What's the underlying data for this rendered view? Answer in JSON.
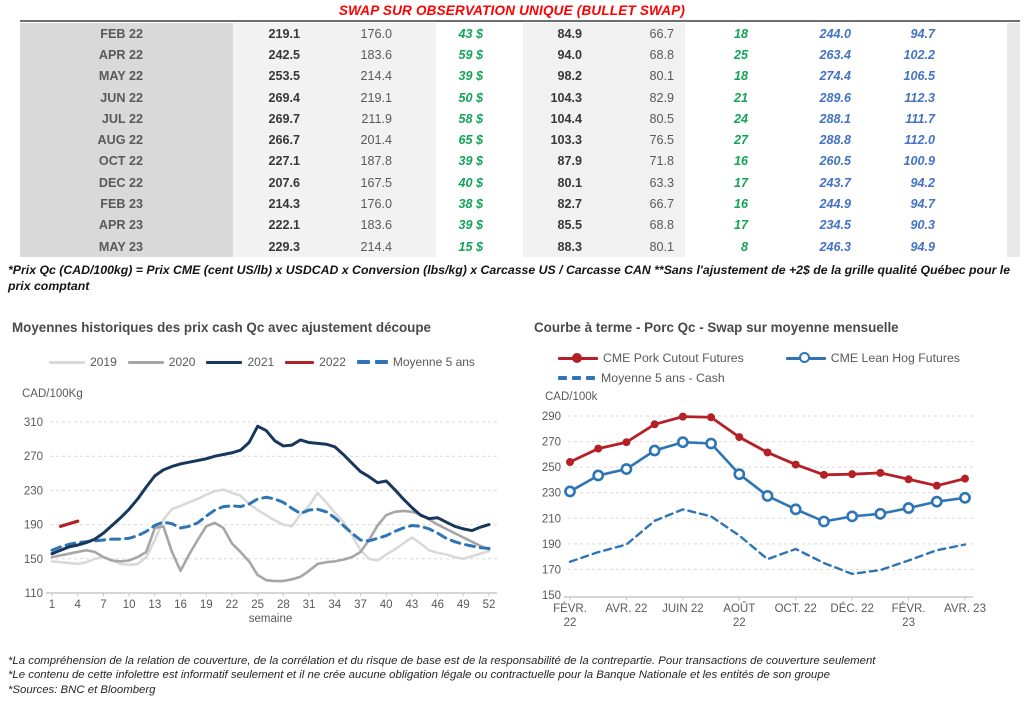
{
  "title": "SWAP SUR OBSERVATION UNIQUE (BULLET SWAP)",
  "table": {
    "rows": [
      {
        "month": "FEB 22",
        "values": [
          "219.1",
          "176.0",
          "43 $",
          "84.9",
          "66.7",
          "18",
          "244.0",
          "94.7"
        ]
      },
      {
        "month": "APR 22",
        "values": [
          "242.5",
          "183.6",
          "59 $",
          "94.0",
          "68.8",
          "25",
          "263.4",
          "102.2"
        ]
      },
      {
        "month": "MAY 22",
        "values": [
          "253.5",
          "214.4",
          "39 $",
          "98.2",
          "80.1",
          "18",
          "274.4",
          "106.5"
        ]
      },
      {
        "month": "JUN 22",
        "values": [
          "269.4",
          "219.1",
          "50 $",
          "104.3",
          "82.9",
          "21",
          "289.6",
          "112.3"
        ]
      },
      {
        "month": "JUL 22",
        "values": [
          "269.7",
          "211.9",
          "58 $",
          "104.4",
          "80.5",
          "24",
          "288.1",
          "111.7"
        ]
      },
      {
        "month": "AUG 22",
        "values": [
          "266.7",
          "201.4",
          "65 $",
          "103.3",
          "76.5",
          "27",
          "288.8",
          "112.0"
        ]
      },
      {
        "month": "OCT 22",
        "values": [
          "227.1",
          "187.8",
          "39 $",
          "87.9",
          "71.8",
          "16",
          "260.5",
          "100.9"
        ]
      },
      {
        "month": "DEC 22",
        "values": [
          "207.6",
          "167.5",
          "40 $",
          "80.1",
          "63.3",
          "17",
          "243.7",
          "94.2"
        ]
      },
      {
        "month": "FEB 23",
        "values": [
          "214.3",
          "176.0",
          "38 $",
          "82.7",
          "66.7",
          "16",
          "244.9",
          "94.7"
        ]
      },
      {
        "month": "APR 23",
        "values": [
          "222.1",
          "183.6",
          "39 $",
          "85.5",
          "68.8",
          "17",
          "234.5",
          "90.3"
        ]
      },
      {
        "month": "MAY 23",
        "values": [
          "229.3",
          "214.4",
          "15 $",
          "88.3",
          "80.1",
          "8",
          "246.3",
          "94.9"
        ]
      }
    ]
  },
  "table_footnote": "*Prix Qc (CAD/100kg) = Prix CME (cent US/lb) x USDCAD x Conversion (lbs/kg) x Carcasse US / Carcasse CAN **Sans l'ajustement de +2$ de la grille qualité Québec pour le prix comptant",
  "chart_data": [
    {
      "type": "line",
      "title": "Moyennes historiques des prix cash Qc avec ajustement découpe",
      "ylabel": "CAD/100Kg",
      "xlabel": "semaine",
      "ylim": [
        110,
        310
      ],
      "y_ticks": [
        310,
        270,
        230,
        190,
        150,
        110
      ],
      "x_ticks": [
        1,
        4,
        7,
        10,
        13,
        16,
        19,
        22,
        25,
        28,
        31,
        34,
        37,
        40,
        43,
        46,
        49,
        52
      ],
      "x_range": [
        1,
        52
      ],
      "grid": "dashed-horizontal",
      "legend_position": "top",
      "series": [
        {
          "name": "2019",
          "color": "#d9d9d9",
          "style": "solid",
          "values": [
            147,
            146,
            145,
            144,
            146,
            150,
            152,
            148,
            144,
            143,
            144,
            152,
            172,
            196,
            208,
            212,
            216,
            220,
            225,
            229,
            231,
            227,
            224,
            214,
            207,
            201,
            195,
            190,
            188,
            202,
            212,
            227,
            216,
            204,
            193,
            178,
            160,
            150,
            148,
            155,
            161,
            168,
            175,
            168,
            160,
            157,
            155,
            152,
            150,
            153,
            156,
            159
          ]
        },
        {
          "name": "2020",
          "color": "#a6a6a6",
          "style": "solid",
          "values": [
            152,
            154,
            156,
            158,
            160,
            158,
            152,
            148,
            147,
            148,
            152,
            158,
            186,
            188,
            158,
            136,
            155,
            172,
            188,
            192,
            186,
            168,
            158,
            147,
            131,
            125,
            124,
            124,
            126,
            129,
            136,
            144,
            146,
            147,
            149,
            152,
            158,
            172,
            189,
            201,
            205,
            206,
            205,
            202,
            196,
            190,
            185,
            180,
            175,
            170,
            165,
            161
          ]
        },
        {
          "name": "2021",
          "color": "#17375c",
          "style": "solid",
          "values": [
            156,
            160,
            164,
            166,
            169,
            173,
            180,
            189,
            198,
            208,
            220,
            234,
            247,
            254,
            258,
            261,
            263,
            265,
            267,
            270,
            272,
            274,
            277,
            286,
            305,
            300,
            288,
            282,
            283,
            289,
            286,
            285,
            284,
            281,
            272,
            262,
            252,
            246,
            239,
            241,
            231,
            220,
            210,
            201,
            197,
            198,
            193,
            188,
            185,
            183,
            187,
            190
          ]
        },
        {
          "name": "2022",
          "color": "#b42025",
          "style": "solid",
          "x": [
            2,
            3,
            4
          ],
          "values": [
            188,
            191,
            194
          ]
        },
        {
          "name": "Moyenne 5 ans",
          "color": "#2e75b6",
          "style": "dashed",
          "values": [
            160,
            164,
            167,
            169,
            170,
            171,
            172,
            173,
            173,
            174,
            177,
            182,
            189,
            193,
            191,
            186,
            188,
            192,
            200,
            207,
            211,
            212,
            211,
            214,
            220,
            222,
            220,
            216,
            209,
            203,
            207,
            208,
            205,
            198,
            189,
            180,
            172,
            171,
            174,
            177,
            182,
            186,
            189,
            188,
            185,
            180,
            174,
            170,
            167,
            165,
            163,
            162
          ]
        }
      ]
    },
    {
      "type": "line",
      "title": "Courbe à terme - Porc Qc - Swap sur moyenne mensuelle",
      "ylabel": "CAD/100k",
      "ylim": [
        150,
        290
      ],
      "y_ticks": [
        290,
        270,
        250,
        230,
        210,
        190,
        170,
        150
      ],
      "x_ticks": [
        {
          "pos": 1,
          "lines": [
            "FÉVR.",
            "22"
          ]
        },
        {
          "pos": 3,
          "lines": [
            "AVR. 22"
          ]
        },
        {
          "pos": 5,
          "lines": [
            "JUIN 22"
          ]
        },
        {
          "pos": 7,
          "lines": [
            "AOÛT",
            "22"
          ]
        },
        {
          "pos": 9,
          "lines": [
            "OCT. 22"
          ]
        },
        {
          "pos": 11,
          "lines": [
            "DÉC. 22"
          ]
        },
        {
          "pos": 13,
          "lines": [
            "FÉVR.",
            "23"
          ]
        },
        {
          "pos": 15,
          "lines": [
            "AVR. 23"
          ]
        }
      ],
      "x_range": [
        1,
        15
      ],
      "grid": "dashed-horizontal",
      "legend_position": "top",
      "series": [
        {
          "name": "CME Pork Cutout Futures",
          "color": "#b42025",
          "style": "solid",
          "marker": "dot",
          "values": [
            254,
            264.5,
            269.5,
            283.5,
            289.5,
            289,
            273.5,
            261.5,
            252,
            244,
            244.5,
            245.5,
            240.5,
            235.5,
            241
          ]
        },
        {
          "name": "CME Lean Hog Futures",
          "color": "#2e75b6",
          "style": "solid",
          "marker": "circle",
          "values": [
            231,
            243.5,
            248.5,
            263,
            269.5,
            268.5,
            244.5,
            227.5,
            217,
            207.5,
            211.5,
            213.5,
            218,
            223,
            226
          ]
        },
        {
          "name": "Moyenne 5 ans - Cash",
          "color": "#2e75b6",
          "style": "dashed",
          "values": [
            176,
            183.5,
            189.5,
            208,
            217,
            211.5,
            196.5,
            178,
            186,
            175,
            166.5,
            169.5,
            177,
            185,
            189.5
          ]
        }
      ]
    }
  ],
  "footnotes": [
    "*La compréhension de la relation de couverture, de la corrélation et du risque de base est de la responsabilité de la contrepartie. Pour transactions de couverture seulement",
    "*Le contenu de cette infolettre est informatif seulement et il ne crée aucune obligation légale ou contractuelle pour la Banque Nationale et les entités de son groupe",
    "*Sources: BNC et Bloomberg"
  ],
  "colors": {
    "title_red": "#fe0000",
    "table_green": "#12a457",
    "table_blue": "#4472c4",
    "navy_2021": "#17375c",
    "red_2022": "#b42025",
    "blue_dashed": "#2e75b6",
    "gray_2020": "#a6a6a6",
    "light_gray_2019": "#d9d9d9",
    "month_band_bg": "#d9d9d9",
    "value_band_bg": "#f2f2f2"
  }
}
